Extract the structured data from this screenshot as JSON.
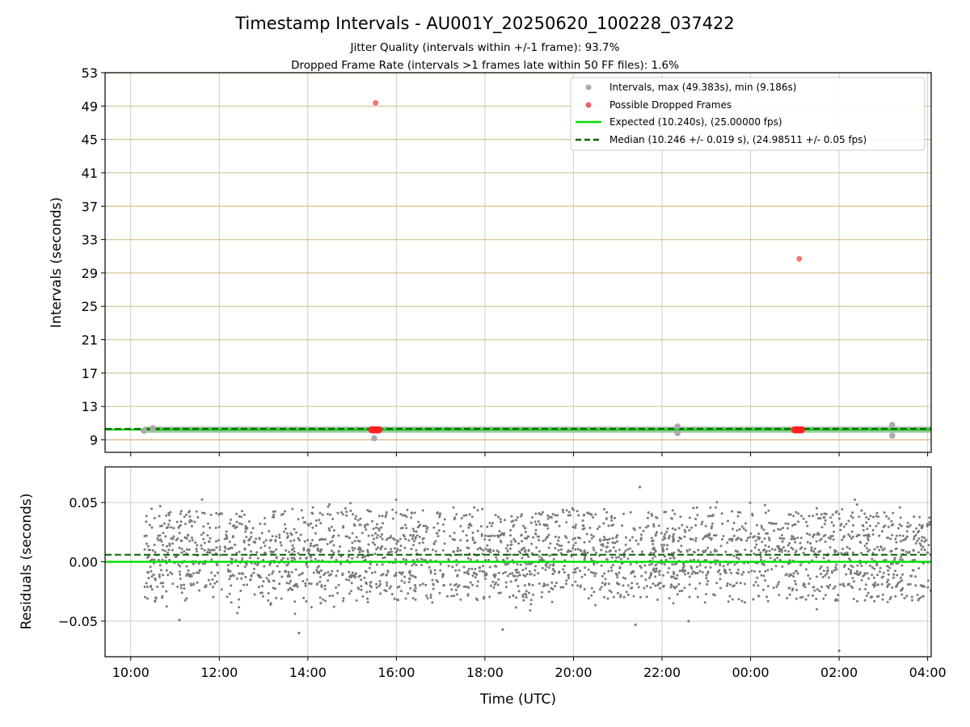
{
  "chart_data": {
    "type": "scatter",
    "title": "Timestamp Intervals - AU001Y_20250620_100228_037422",
    "subtitle_lines": [
      "Jitter Quality (intervals within +/-1 frame): 93.7%",
      "Dropped Frame Rate (intervals >1 frames late within 50 FF files): 1.6%"
    ],
    "xlabel": "Time (UTC)",
    "x_tick_labels": [
      "10:00",
      "12:00",
      "14:00",
      "16:00",
      "18:00",
      "20:00",
      "22:00",
      "00:00",
      "02:00",
      "04:00"
    ],
    "x_tick_hours": [
      0,
      2,
      4,
      6,
      8,
      10,
      12,
      14,
      16,
      18
    ],
    "x_range_hours": [
      -0.58,
      18.08
    ],
    "data_start_hours": 0.3,
    "grid": true,
    "legend_position": "top-right",
    "colors": {
      "intervals": "#aaaaaa",
      "dropped": "#f06060",
      "expected": "#00e000",
      "median": "#006400",
      "residual_points": "#7a7a7a",
      "frame_lines": "#d6c690",
      "lower_line": "#e8b080",
      "grid": "#cccccc"
    },
    "top_panel": {
      "ylabel": "Intervals (seconds)",
      "ylim": [
        7.5,
        53
      ],
      "y_ticks": [
        9,
        13,
        17,
        21,
        25,
        29,
        33,
        37,
        41,
        45,
        49,
        53
      ],
      "expected_interval": 10.24,
      "median_interval": 10.246,
      "legend": [
        "Intervals, max (49.383s), min (9.186s)",
        "Possible Dropped Frames",
        "Expected (10.240s), (25.00000 fps)",
        "Median (10.246 +/- 0.019 s), (24.98511 +/- 0.05 fps)"
      ],
      "dropped_points": [
        {
          "t": 5.53,
          "y": 49.38
        },
        {
          "t": 15.1,
          "y": 30.7
        },
        {
          "t": 5.45,
          "y": 10.2
        },
        {
          "t": 5.5,
          "y": 10.2
        },
        {
          "t": 5.55,
          "y": 10.2
        },
        {
          "t": 5.6,
          "y": 10.2
        },
        {
          "t": 15.0,
          "y": 10.2
        },
        {
          "t": 15.05,
          "y": 10.2
        },
        {
          "t": 15.1,
          "y": 10.2
        },
        {
          "t": 15.15,
          "y": 10.2
        }
      ],
      "outlier_points": [
        {
          "t": 0.5,
          "y": 10.4
        },
        {
          "t": 5.5,
          "y": 9.19
        },
        {
          "t": 12.35,
          "y": 10.6
        },
        {
          "t": 12.35,
          "y": 9.8
        },
        {
          "t": 17.2,
          "y": 10.8
        },
        {
          "t": 17.2,
          "y": 9.5
        }
      ]
    },
    "bottom_panel": {
      "ylabel": "Residuals (seconds)",
      "ylim": [
        -0.08,
        0.08
      ],
      "y_ticks": [
        -0.05,
        0.0,
        0.05
      ],
      "y_tick_labels": [
        "−0.05",
        "0.00",
        "0.05"
      ],
      "expected_residual": 0.0,
      "median_residual": 0.006,
      "notable_residuals": [
        {
          "t": 1.1,
          "y": -0.049
        },
        {
          "t": 3.8,
          "y": -0.06
        },
        {
          "t": 8.4,
          "y": -0.057
        },
        {
          "t": 11.4,
          "y": -0.053
        },
        {
          "t": 12.6,
          "y": -0.05
        },
        {
          "t": 16.0,
          "y": -0.075
        },
        {
          "t": 11.5,
          "y": 0.063
        }
      ]
    }
  }
}
